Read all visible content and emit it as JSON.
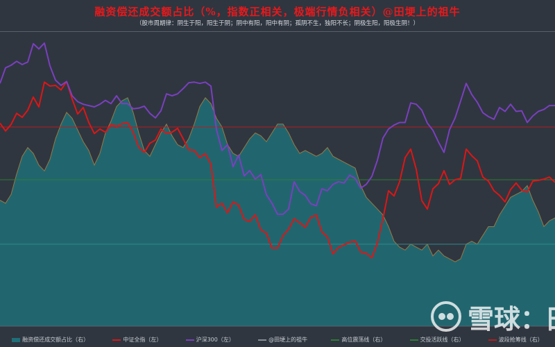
{
  "title": "融资偿还成交额占比（%，指数正相关，极端行情负相关）@田埂上的祖牛",
  "subtitle": "（股市周期律：阴生于阳，阳生于阴；阴中有阳，阳中有阴；孤阴不生，独阳不长；阴极生阳，阳极生阴！）",
  "watermark": {
    "logo_icon": "snowball-logo-icon",
    "text": "雪球：田"
  },
  "colors": {
    "background": "#2f3640",
    "area_fill": "#1e6f78",
    "area_line": "#c08a3e",
    "zhongzheng": "#e01515",
    "hs300": "#7b3fbf",
    "high_band": "#b71c1c",
    "active_line": "#3a8f3a",
    "low_line": "#2c8d8d"
  },
  "legend": [
    {
      "label": "融资偿还成交额占比（右）",
      "style": "area",
      "color": "#1e6f78"
    },
    {
      "label": "中证全指（左）",
      "style": "line",
      "color": "#e01515"
    },
    {
      "label": "沪深300（左）",
      "style": "line",
      "color": "#7b3fbf"
    },
    {
      "label": "@田埂上的祖牛",
      "style": "line",
      "color": "#8a8f96"
    },
    {
      "label": "高位震荡线（右）",
      "style": "line",
      "color": "#2e7d32"
    },
    {
      "label": "交投活跃线（右）",
      "style": "line",
      "color": "#2e7d32"
    },
    {
      "label": "波段抢筹线（右）",
      "style": "line",
      "color": "#b71c1c"
    }
  ],
  "chart_data": {
    "type": "line",
    "x": [
      0,
      8,
      16,
      24,
      32,
      40,
      48,
      56,
      64,
      72,
      80,
      88,
      96,
      104,
      112,
      120,
      128,
      136,
      144,
      152,
      160,
      168,
      176,
      184,
      192,
      200,
      208,
      216,
      224,
      232,
      240,
      248,
      256,
      264,
      272,
      280,
      288,
      296,
      304,
      312,
      320,
      328,
      336,
      344,
      352,
      360,
      368,
      376,
      384,
      392,
      400,
      408,
      416,
      424,
      432,
      440,
      448,
      456,
      464,
      472,
      480,
      488,
      496,
      504,
      512,
      520,
      528,
      536,
      544,
      552,
      560,
      568,
      576,
      584,
      592,
      600,
      608,
      616,
      624,
      632,
      640,
      648,
      656,
      664,
      672,
      680,
      688,
      696,
      704,
      712,
      720,
      728,
      736,
      744,
      752,
      760,
      768,
      776,
      784,
      792,
      800
    ],
    "series": [
      {
        "name": "中证全指（左）",
        "axis": "left",
        "values": [
          312,
          300,
          310,
          327,
          321,
          332,
          352,
          337,
          375,
          369,
          370,
          363,
          376,
          349,
          326,
          336,
          313,
          296,
          303,
          298,
          310,
          307,
          311,
          313,
          298,
          275,
          267,
          281,
          286,
          303,
          296,
          298,
          304,
          288,
          271,
          270,
          259,
          265,
          249,
          183,
          189,
          174,
          191,
          186,
          164,
          161,
          171,
          148,
          143,
          120,
          120,
          139,
          149,
          165,
          159,
          152,
          167,
          171,
          145,
          137,
          111,
          121,
          125,
          129,
          131,
          114,
          112,
          105,
          128,
          165,
          208,
          200,
          222,
          259,
          272,
          241,
          193,
          180,
          211,
          219,
          239,
          218,
          225,
          227,
          272,
          262,
          254,
          229,
          223,
          208,
          201,
          191,
          210,
          220,
          209,
          206,
          223,
          224,
          226,
          229,
          221
        ]
      },
      {
        "name": "沪深300（左）",
        "axis": "left",
        "values": [
          373,
          397,
          401,
          407,
          402,
          406,
          434,
          426,
          435,
          400,
          378,
          370,
          376,
          354,
          345,
          341,
          339,
          337,
          341,
          347,
          342,
          354,
          342,
          342,
          334,
          335,
          338,
          327,
          320,
          331,
          357,
          354,
          357,
          365,
          374,
          375,
          373,
          375,
          369,
          302,
          270,
          279,
          245,
          263,
          231,
          239,
          226,
          233,
          202,
          189,
          172,
          172,
          180,
          222,
          207,
          201,
          188,
          185,
          211,
          208,
          218,
          222,
          220,
          232,
          227,
          212,
          218,
          230,
          255,
          289,
          303,
          309,
          313,
          313,
          343,
          341,
          332,
          312,
          301,
          283,
          267,
          302,
          320,
          346,
          373,
          356,
          344,
          328,
          322,
          318,
          336,
          330,
          341,
          330,
          331,
          313,
          323,
          330,
          333,
          339,
          339
        ]
      },
      {
        "name": "融资偿还成交额占比（右）",
        "axis": "right",
        "style": "area",
        "values": [
          4.3,
          4.2,
          4.5,
          5.2,
          5.8,
          6.1,
          5.9,
          5.5,
          5.3,
          5.7,
          6.4,
          6.9,
          7.3,
          7.1,
          6.7,
          6.3,
          6.0,
          5.5,
          5.9,
          6.6,
          7.0,
          7.5,
          7.7,
          7.8,
          7.3,
          6.6,
          6.0,
          5.8,
          6.2,
          6.6,
          6.9,
          6.5,
          6.2,
          6.1,
          6.4,
          6.9,
          7.5,
          7.8,
          7.6,
          7.1,
          6.8,
          6.2,
          5.9,
          5.8,
          6.1,
          6.4,
          6.6,
          6.5,
          6.3,
          6.6,
          6.9,
          6.9,
          6.6,
          6.2,
          5.9,
          6.0,
          5.9,
          5.8,
          5.9,
          6.1,
          5.8,
          5.7,
          5.6,
          5.5,
          5.4,
          4.8,
          4.4,
          4.2,
          4.0,
          3.8,
          3.4,
          2.9,
          2.7,
          2.6,
          2.8,
          2.7,
          2.6,
          2.8,
          2.4,
          2.6,
          2.4,
          2.3,
          2.2,
          2.3,
          2.8,
          2.9,
          2.8,
          3.1,
          3.4,
          3.4,
          3.8,
          4.1,
          4.4,
          4.5,
          4.6,
          4.8,
          4.3,
          3.9,
          3.4,
          3.6,
          3.7
        ]
      }
    ],
    "left_ylim": [
      0,
      450
    ],
    "right_ylim": [
      0,
      10
    ],
    "reference_lines": [
      {
        "name": "高位震荡线（右）",
        "axis": "right",
        "value": 6.8,
        "color": "#b71c1c"
      },
      {
        "name": "交投活跃线（右）",
        "axis": "right",
        "value": 5.0,
        "color": "#2e7d32"
      },
      {
        "name": "波段抢筹线（右）",
        "axis": "right",
        "value": 2.8,
        "color": "#2c8d8d"
      }
    ],
    "grid": false,
    "legend_position": "bottom"
  }
}
